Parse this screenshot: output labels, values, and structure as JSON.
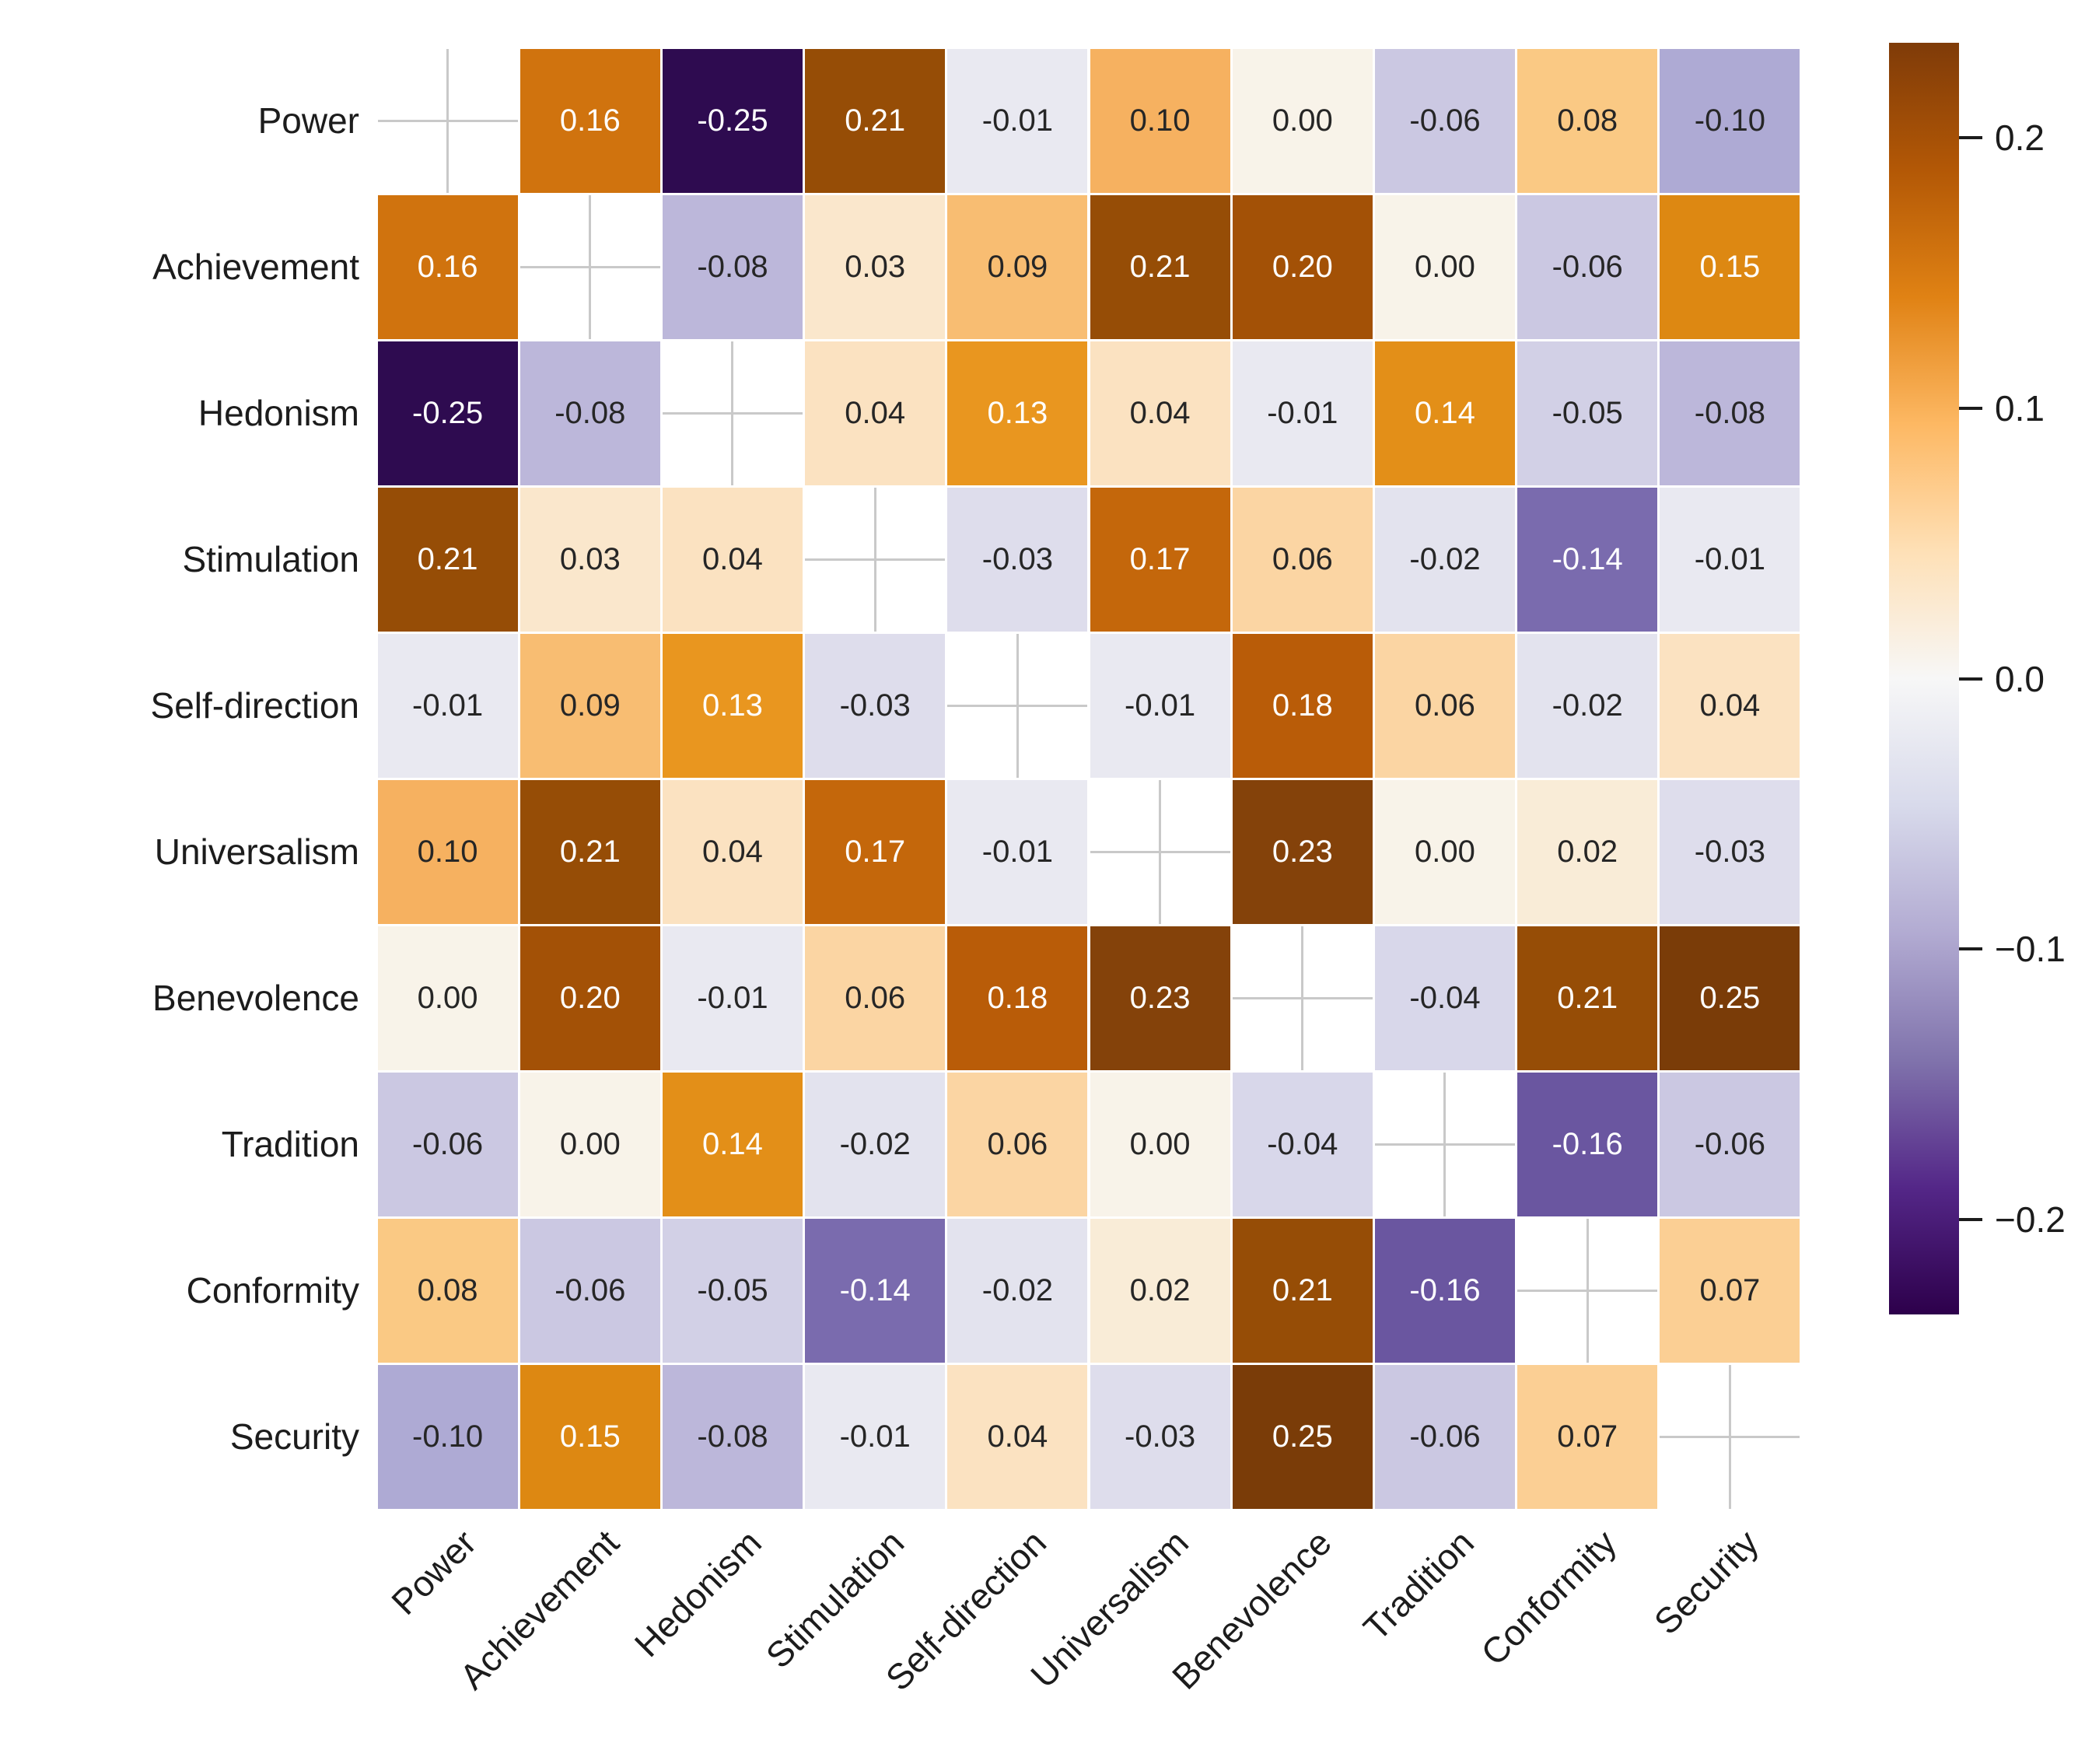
{
  "figure": {
    "background": "#ffffff"
  },
  "chart_data": {
    "type": "heatmap",
    "title": "",
    "xlabel": "",
    "ylabel": "",
    "categories": [
      "Power",
      "Achievement",
      "Hedonism",
      "Stimulation",
      "Self-direction",
      "Universalism",
      "Benevolence",
      "Tradition",
      "Conformity",
      "Security"
    ],
    "matrix": [
      [
        null,
        0.16,
        -0.25,
        0.21,
        -0.01,
        0.1,
        0.0,
        -0.06,
        0.08,
        -0.1
      ],
      [
        0.16,
        null,
        -0.08,
        0.03,
        0.09,
        0.21,
        0.2,
        0.0,
        -0.06,
        0.15
      ],
      [
        -0.25,
        -0.08,
        null,
        0.04,
        0.13,
        0.04,
        -0.01,
        0.14,
        -0.05,
        -0.08
      ],
      [
        0.21,
        0.03,
        0.04,
        null,
        -0.03,
        0.17,
        0.06,
        -0.02,
        -0.14,
        -0.01
      ],
      [
        -0.01,
        0.09,
        0.13,
        -0.03,
        null,
        -0.01,
        0.18,
        0.06,
        -0.02,
        0.04
      ],
      [
        0.1,
        0.21,
        0.04,
        0.17,
        -0.01,
        null,
        0.23,
        0.0,
        0.02,
        -0.03
      ],
      [
        0.0,
        0.2,
        -0.01,
        0.06,
        0.18,
        0.23,
        null,
        -0.04,
        0.21,
        0.25
      ],
      [
        -0.06,
        0.0,
        0.14,
        -0.02,
        0.06,
        0.0,
        -0.04,
        null,
        -0.16,
        -0.06
      ],
      [
        0.08,
        -0.06,
        -0.05,
        -0.14,
        -0.02,
        0.02,
        0.21,
        -0.16,
        null,
        0.07
      ],
      [
        -0.1,
        0.15,
        -0.08,
        -0.01,
        0.04,
        -0.03,
        0.25,
        -0.06,
        0.07,
        null
      ]
    ],
    "masked_diagonal": true,
    "value_decimals": 2,
    "annotation_text_colors": {
      "on_dark": "#ffffff",
      "on_light": "#262626"
    },
    "grid_color": "#ffffff",
    "mask_cross_color": "#c9c9c9",
    "colormap": {
      "name": "PuOr_r",
      "vmin": -0.235,
      "vmax": 0.235,
      "cell_anchors": [
        [
          -0.25,
          "#2e0b50"
        ],
        [
          -0.2,
          "#49237f"
        ],
        [
          -0.16,
          "#6a56a0"
        ],
        [
          -0.14,
          "#7a6bae"
        ],
        [
          -0.12,
          "#938bbf"
        ],
        [
          -0.1,
          "#aeaad4"
        ],
        [
          -0.08,
          "#bcb7da"
        ],
        [
          -0.06,
          "#cbc8e2"
        ],
        [
          -0.04,
          "#d8d7ea"
        ],
        [
          -0.02,
          "#e3e3ee"
        ],
        [
          -0.01,
          "#e9e9f1"
        ],
        [
          0.0,
          "#f8f3e9"
        ],
        [
          0.02,
          "#f9ecd7"
        ],
        [
          0.04,
          "#fbe2c1"
        ],
        [
          0.06,
          "#fbd5a3"
        ],
        [
          0.08,
          "#fac984"
        ],
        [
          0.1,
          "#f6b160"
        ],
        [
          0.12,
          "#f0a13b"
        ],
        [
          0.13,
          "#e9961f"
        ],
        [
          0.15,
          "#dd8812"
        ],
        [
          0.16,
          "#d0730e"
        ],
        [
          0.18,
          "#b95c08"
        ],
        [
          0.2,
          "#a35106"
        ],
        [
          0.21,
          "#964d06"
        ],
        [
          0.23,
          "#84420a"
        ],
        [
          0.25,
          "#7a3c08"
        ]
      ],
      "colorbar_gradient": [
        "#7f3b08",
        "#b35806",
        "#e08214",
        "#fdb863",
        "#fee0b6",
        "#f7f7f7",
        "#d8daeb",
        "#b2abd2",
        "#8073ac",
        "#542788",
        "#2d004b"
      ]
    },
    "colorbar": {
      "tick_labels": [
        "0.2",
        "0.1",
        "0.0",
        "−0.1",
        "−0.2"
      ],
      "tick_values": [
        0.2,
        0.1,
        0.0,
        -0.1,
        -0.2
      ],
      "position": "right"
    },
    "legend": null,
    "grid": "white cell separators, gray cross on masked diagonal cells"
  }
}
